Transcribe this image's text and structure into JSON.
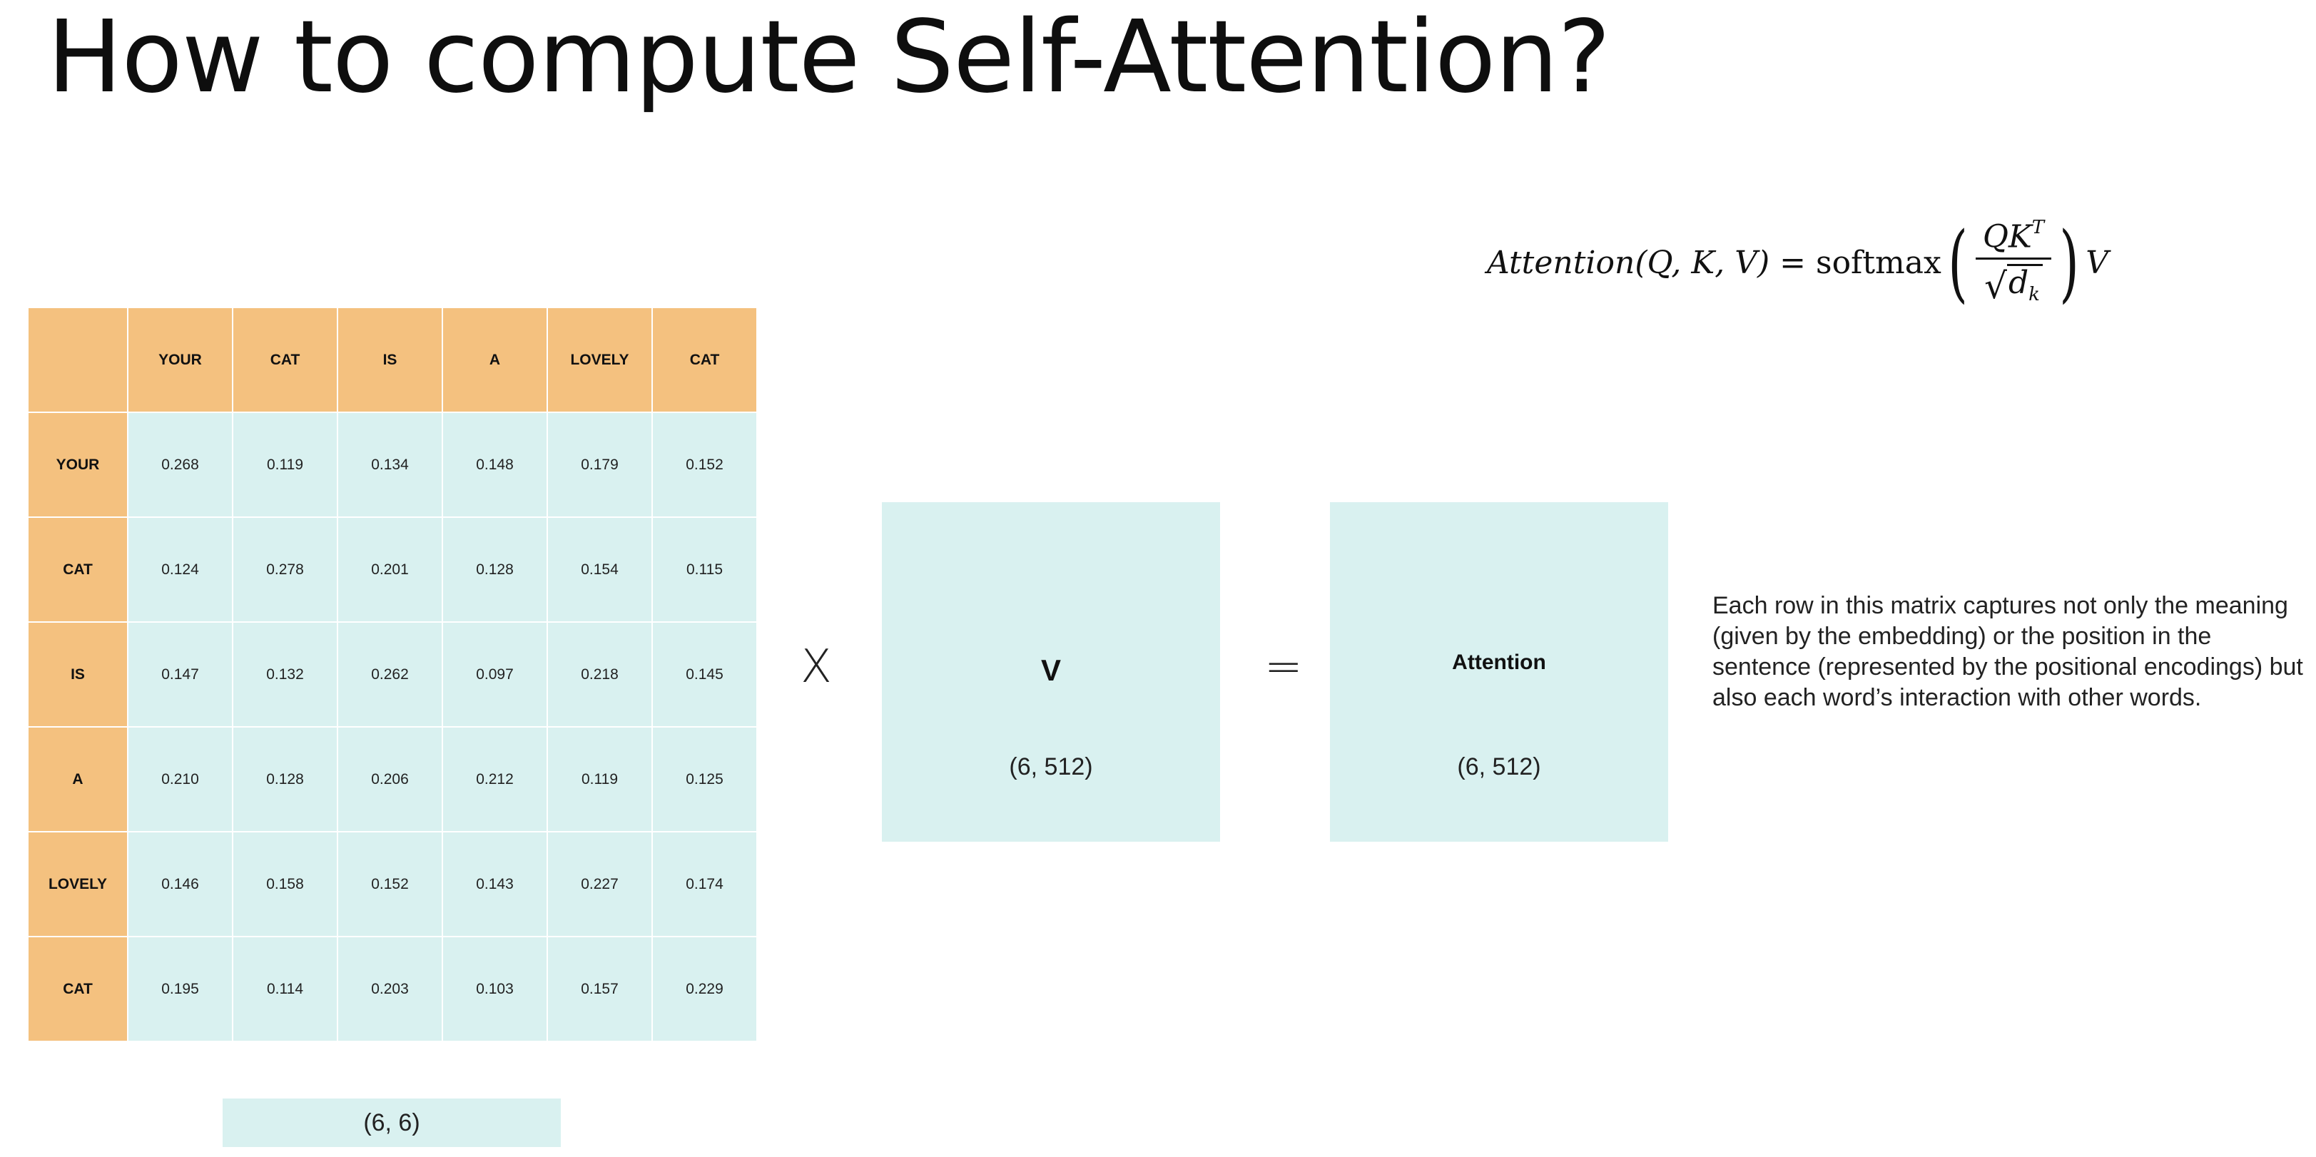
{
  "slide": {
    "title": "How to compute Self-Attention?",
    "formula": {
      "lhs": "Attention(Q, K, V) = ",
      "fn": "softmax",
      "numerator": "QK",
      "numerator_sup": "T",
      "denominator": "d",
      "denominator_sub": "k",
      "trailing": "V"
    },
    "matrix": {
      "headers": [
        "YOUR",
        "CAT",
        "IS",
        "A",
        "LOVELY",
        "CAT"
      ],
      "rows": [
        {
          "label": "YOUR",
          "values": [
            "0.268",
            "0.119",
            "0.134",
            "0.148",
            "0.179",
            "0.152"
          ]
        },
        {
          "label": "CAT",
          "values": [
            "0.124",
            "0.278",
            "0.201",
            "0.128",
            "0.154",
            "0.115"
          ]
        },
        {
          "label": "IS",
          "values": [
            "0.147",
            "0.132",
            "0.262",
            "0.097",
            "0.218",
            "0.145"
          ]
        },
        {
          "label": "A",
          "values": [
            "0.210",
            "0.128",
            "0.206",
            "0.212",
            "0.119",
            "0.125"
          ]
        },
        {
          "label": "LOVELY",
          "values": [
            "0.146",
            "0.158",
            "0.152",
            "0.143",
            "0.227",
            "0.174"
          ]
        },
        {
          "label": "CAT",
          "values": [
            "0.195",
            "0.114",
            "0.203",
            "0.103",
            "0.157",
            "0.229"
          ]
        }
      ],
      "shape": "(6, 6)"
    },
    "multiply_symbol": "X",
    "equals_symbol": "=",
    "v_box": {
      "name": "V",
      "shape": "(6, 512)"
    },
    "attention_box": {
      "name": "Attention",
      "shape": "(6, 512)"
    },
    "description": "Each row in this matrix captures not only the meaning (given by the embedding) or the position in the sentence (represented by the positional encodings) but also each word’s interaction with other words.",
    "colors": {
      "header_fill": "#f4c17f",
      "value_fill": "#d9f1f0",
      "background": "#ffffff",
      "text": "#111111"
    }
  }
}
